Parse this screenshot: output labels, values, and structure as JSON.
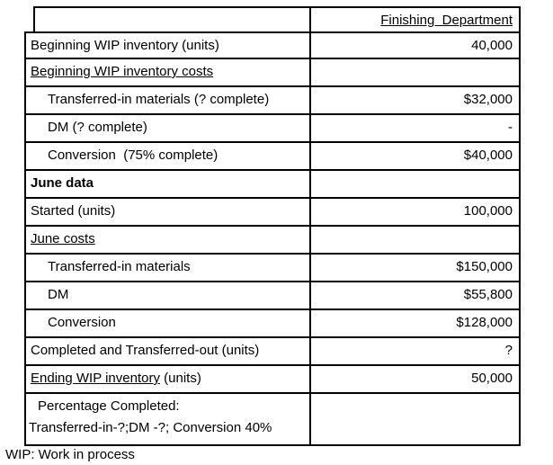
{
  "table": {
    "header_column_title": "Finishing  Department",
    "rows": [
      {
        "type": "header",
        "label": "",
        "value": "Finishing  Department"
      },
      {
        "type": "plain",
        "label": "Beginning WIP inventory (units)",
        "value": "40,000"
      },
      {
        "type": "underline",
        "label": "Beginning WIP inventory costs",
        "value": ""
      },
      {
        "type": "indent",
        "label": "Transferred-in materials (? complete)",
        "value": "$32,000"
      },
      {
        "type": "indent",
        "label": "DM (? complete)",
        "value": "-"
      },
      {
        "type": "indent",
        "label": "Conversion  (75% complete)",
        "value": "$40,000"
      },
      {
        "type": "bold",
        "label": "June data",
        "value": ""
      },
      {
        "type": "plain",
        "label": "Started (units)",
        "value": "100,000"
      },
      {
        "type": "underline",
        "label": "June costs",
        "value": ""
      },
      {
        "type": "indent",
        "label": "Transferred-in materials",
        "value": "$150,000"
      },
      {
        "type": "indent",
        "label": "DM",
        "value": "$55,800"
      },
      {
        "type": "indent",
        "label": "Conversion",
        "value": "$128,000"
      },
      {
        "type": "plain",
        "label": "Completed and Transferred-out (units)",
        "value": "?"
      },
      {
        "type": "split",
        "label_underlined": "Ending WIP inventory",
        "label_rest": " (units)",
        "value": "50,000"
      },
      {
        "type": "twoline",
        "line1": "Percentage Completed:",
        "line2": "Transferred-in-?;DM -?; Conversion 40%",
        "value": ""
      }
    ]
  },
  "footnote": "WIP: Work in process",
  "colors": {
    "border": "#000000",
    "text": "#000000",
    "background": "#ffffff"
  }
}
